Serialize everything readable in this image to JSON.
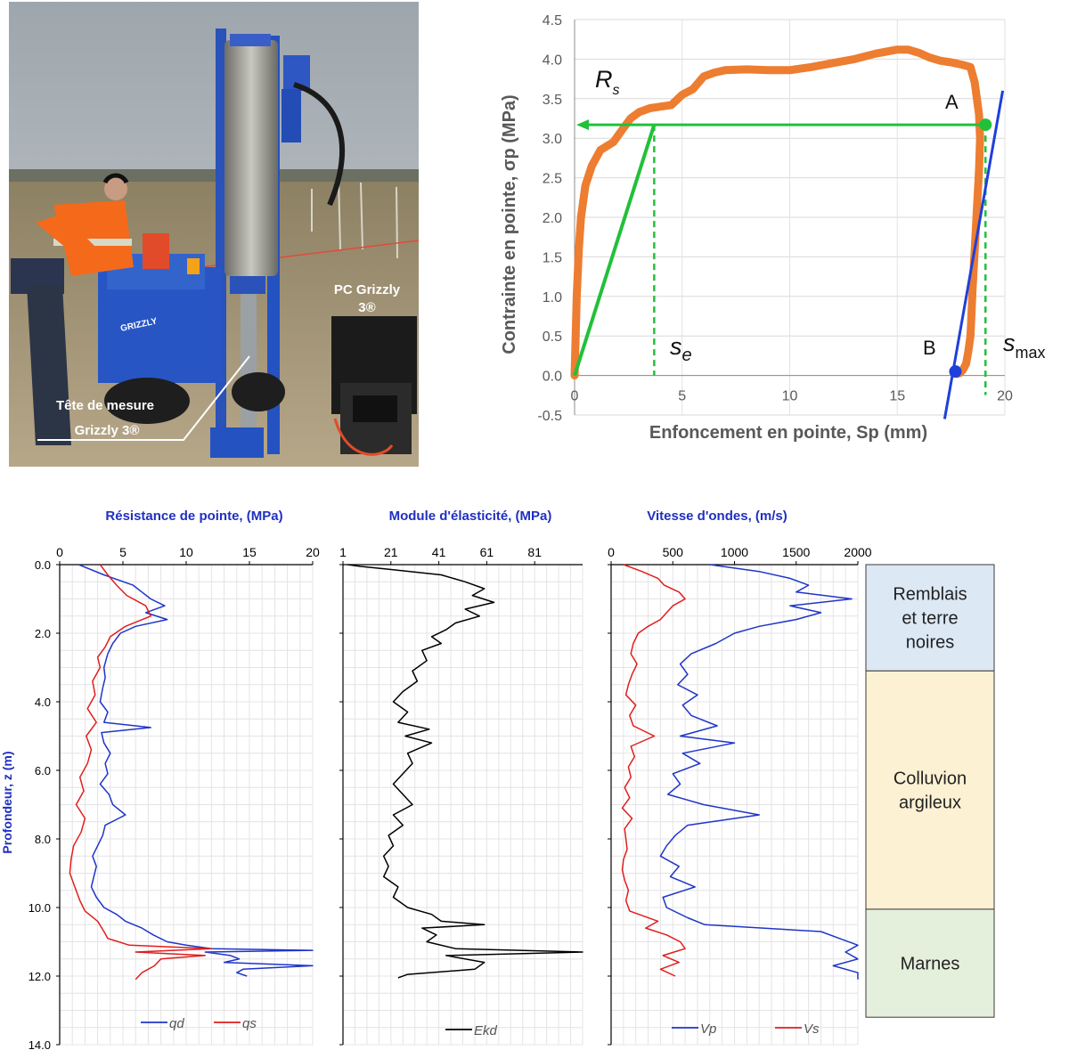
{
  "photo": {
    "label_pc_line1": "PC Grizzly",
    "label_pc_line2": "3®",
    "label_head_line1": "Tête de mesure",
    "label_head_line2": "Grizzly 3®",
    "machine_text": "GRIZZLY"
  },
  "chart_data": [
    {
      "type": "line",
      "xlabel": "Enfoncement en pointe, Sp (mm)",
      "ylabel": "Contrainte en pointe, σp (MPa)",
      "xlim": [
        0,
        20
      ],
      "ylim": [
        -0.5,
        4.5
      ],
      "xticks": [
        0,
        5,
        10,
        15,
        20
      ],
      "yticks": [
        "-0.5",
        "0.0",
        "0.5",
        "1.0",
        "1.5",
        "2.0",
        "2.5",
        "3.0",
        "3.5",
        "4.0",
        "4.5"
      ],
      "grid": true,
      "annotations": {
        "rs_main": "R",
        "rs_sub": "s",
        "se_main": "s",
        "se_sub": "e",
        "smax_main": "s",
        "smax_sub": "max",
        "pointA": "A",
        "pointB": "B"
      },
      "colors": {
        "curve": "#ed7d31",
        "construction": "#22c03a",
        "unload": "#1f3fdc"
      },
      "series": [
        {
          "x": [
            0,
            0.05,
            0.1,
            0.2,
            0.3,
            0.5,
            0.8,
            1.2,
            1.8,
            2.2,
            2.6,
            3.0,
            3.5,
            4.0,
            4.5,
            5.0,
            5.5,
            6.0,
            6.5,
            7.0,
            8.0,
            9.0,
            10.0,
            11.0,
            12.0,
            13.0,
            14.0,
            15.0,
            15.5,
            16.0,
            16.5,
            17.0,
            17.5,
            18.0,
            18.4,
            18.6,
            18.8,
            18.85,
            18.8,
            18.7,
            18.6,
            18.5,
            18.45,
            18.4,
            18.3,
            18.2,
            18.05,
            17.9,
            17.8
          ],
          "y": [
            0,
            0.5,
            1.0,
            1.6,
            2.0,
            2.4,
            2.65,
            2.85,
            2.95,
            3.1,
            3.25,
            3.33,
            3.38,
            3.4,
            3.42,
            3.55,
            3.62,
            3.78,
            3.83,
            3.86,
            3.87,
            3.86,
            3.86,
            3.9,
            3.95,
            4.0,
            4.07,
            4.12,
            4.12,
            4.08,
            4.02,
            3.98,
            3.96,
            3.93,
            3.9,
            3.7,
            3.3,
            3.0,
            2.6,
            2.1,
            1.6,
            1.1,
            0.8,
            0.5,
            0.3,
            0.15,
            0.07,
            0.03,
            0.02
          ]
        }
      ],
      "construction": {
        "yield_stress": 3.17,
        "se": 3.7,
        "smax": 19.1,
        "point_A": [
          19.1,
          3.17
        ],
        "point_B": [
          17.7,
          0.05
        ],
        "unload_line": [
          [
            17.2,
            -0.55
          ],
          [
            19.9,
            3.6
          ]
        ]
      }
    },
    {
      "type": "line",
      "title": "Résistance de pointe, (MPa)",
      "ylabel": "Profondeur, z (m)",
      "xlim": [
        0,
        20
      ],
      "ylim": [
        0,
        14
      ],
      "xticks": [
        0,
        5,
        10,
        15,
        20
      ],
      "yticks": [
        "0.0",
        "2.0",
        "4.0",
        "6.0",
        "8.0",
        "10.0",
        "12.0",
        "14.0"
      ],
      "grid": true,
      "legend": "bottom",
      "series": [
        {
          "name": "qd",
          "color": "#1f35c8",
          "depth": [
            0.0,
            0.3,
            0.6,
            0.8,
            1.0,
            1.2,
            1.4,
            1.6,
            1.8,
            2.0,
            2.3,
            2.6,
            3.0,
            3.3,
            3.6,
            4.0,
            4.3,
            4.6,
            4.75,
            4.9,
            5.2,
            5.5,
            5.8,
            6.1,
            6.4,
            6.7,
            7.0,
            7.3,
            7.6,
            7.9,
            8.2,
            8.5,
            8.8,
            9.1,
            9.4,
            9.7,
            10.0,
            10.2,
            10.4,
            10.6,
            10.8,
            11.0,
            11.1,
            11.2,
            11.25,
            11.3,
            11.4,
            11.5,
            11.6,
            11.7,
            11.8,
            11.9,
            12.0
          ],
          "values": [
            1.5,
            3.5,
            5.8,
            6.5,
            7.2,
            8.3,
            6.8,
            8.5,
            6.0,
            4.8,
            4.2,
            3.8,
            3.5,
            3.6,
            3.4,
            3.2,
            3.8,
            3.5,
            7.2,
            3.3,
            3.5,
            4.0,
            3.6,
            3.8,
            3.2,
            3.9,
            4.2,
            5.2,
            3.6,
            3.4,
            3.0,
            2.6,
            2.9,
            2.7,
            2.5,
            2.9,
            3.5,
            4.5,
            5.2,
            6.5,
            7.4,
            8.5,
            10.0,
            12.0,
            20.0,
            11.5,
            13.5,
            14.2,
            13.0,
            20.0,
            14.5,
            14.0,
            14.8
          ]
        },
        {
          "name": "qs",
          "color": "#e11d1d",
          "depth": [
            0.0,
            0.3,
            0.6,
            0.9,
            1.2,
            1.5,
            1.8,
            2.1,
            2.4,
            2.7,
            3.0,
            3.4,
            3.8,
            4.2,
            4.6,
            5.0,
            5.4,
            5.8,
            6.2,
            6.6,
            7.0,
            7.4,
            7.8,
            8.2,
            8.6,
            9.0,
            9.4,
            9.8,
            10.1,
            10.4,
            10.7,
            10.9,
            11.1,
            11.2,
            11.3,
            11.4,
            11.5,
            11.7,
            11.9,
            12.1
          ],
          "values": [
            3.2,
            3.8,
            4.5,
            5.3,
            6.8,
            7.2,
            5.2,
            4.0,
            3.6,
            3.0,
            3.2,
            2.6,
            2.8,
            2.2,
            2.9,
            2.1,
            2.5,
            2.2,
            1.6,
            1.9,
            1.3,
            2.0,
            1.7,
            1.1,
            0.9,
            0.8,
            1.2,
            1.6,
            2.0,
            3.0,
            3.5,
            3.8,
            5.5,
            12.0,
            6.0,
            11.5,
            8.0,
            7.5,
            6.5,
            6.0
          ]
        }
      ]
    },
    {
      "type": "line",
      "title": "Module d'élasticité, (MPa)",
      "xlim": [
        1,
        101
      ],
      "ylim": [
        0,
        14
      ],
      "xticks": [
        1,
        21,
        41,
        61,
        81
      ],
      "grid": true,
      "legend": "bottom",
      "series": [
        {
          "name": "Ekd",
          "color": "#000000",
          "depth": [
            0.0,
            0.05,
            0.15,
            0.3,
            0.5,
            0.7,
            0.9,
            1.1,
            1.3,
            1.5,
            1.7,
            1.9,
            2.1,
            2.3,
            2.5,
            2.8,
            3.1,
            3.4,
            3.7,
            4.0,
            4.3,
            4.6,
            4.8,
            5.0,
            5.2,
            5.5,
            5.8,
            6.1,
            6.4,
            6.7,
            7.0,
            7.3,
            7.6,
            7.9,
            8.2,
            8.5,
            8.8,
            9.1,
            9.4,
            9.7,
            10.0,
            10.2,
            10.4,
            10.5,
            10.6,
            10.8,
            11.0,
            11.2,
            11.3,
            11.4,
            11.6,
            11.8,
            11.95,
            12.05
          ],
          "values": [
            3,
            8,
            22,
            42,
            52,
            60,
            55,
            64,
            52,
            58,
            48,
            44,
            38,
            42,
            34,
            36,
            30,
            32,
            26,
            22,
            28,
            24,
            37,
            27,
            38,
            28,
            30,
            26,
            22,
            26,
            30,
            22,
            26,
            20,
            22,
            18,
            20,
            18,
            24,
            22,
            28,
            38,
            42,
            60,
            34,
            40,
            36,
            48,
            110,
            44,
            60,
            56,
            28,
            24
          ]
        }
      ]
    },
    {
      "type": "line",
      "title": "Vitesse d'ondes, (m/s)",
      "xlim": [
        0,
        2000
      ],
      "ylim": [
        0,
        14
      ],
      "xticks": [
        0,
        500,
        1000,
        1500,
        2000
      ],
      "grid": true,
      "legend": "bottom",
      "series": [
        {
          "name": "Vp",
          "color": "#1f35c8",
          "depth": [
            0.0,
            0.2,
            0.4,
            0.6,
            0.8,
            1.0,
            1.2,
            1.4,
            1.6,
            1.8,
            2.0,
            2.3,
            2.6,
            2.9,
            3.2,
            3.5,
            3.8,
            4.1,
            4.4,
            4.7,
            5.0,
            5.2,
            5.5,
            5.8,
            6.1,
            6.4,
            6.7,
            7.0,
            7.3,
            7.6,
            7.9,
            8.2,
            8.5,
            8.8,
            9.1,
            9.4,
            9.7,
            10.0,
            10.3,
            10.5,
            10.7,
            10.9,
            11.1,
            11.3,
            11.5,
            11.7,
            11.9,
            12.1
          ],
          "values": [
            800,
            1200,
            1450,
            1600,
            1500,
            1950,
            1450,
            1700,
            1500,
            1200,
            1000,
            850,
            650,
            560,
            620,
            540,
            700,
            580,
            650,
            860,
            560,
            1000,
            580,
            720,
            500,
            560,
            460,
            750,
            1200,
            620,
            520,
            450,
            400,
            550,
            480,
            680,
            420,
            450,
            620,
            760,
            1700,
            1850,
            2000,
            1900,
            2000,
            1800,
            2000,
            2000
          ]
        },
        {
          "name": "Vs",
          "color": "#e11d1d",
          "depth": [
            0.0,
            0.2,
            0.4,
            0.6,
            0.8,
            1.0,
            1.2,
            1.4,
            1.6,
            1.8,
            2.0,
            2.3,
            2.6,
            2.9,
            3.2,
            3.5,
            3.8,
            4.1,
            4.4,
            4.7,
            5.0,
            5.3,
            5.6,
            5.9,
            6.2,
            6.5,
            6.8,
            7.1,
            7.4,
            7.7,
            8.0,
            8.3,
            8.6,
            8.9,
            9.2,
            9.5,
            9.8,
            10.1,
            10.4,
            10.6,
            10.8,
            11.0,
            11.2,
            11.4,
            11.6,
            11.8,
            12.0
          ],
          "values": [
            100,
            250,
            380,
            430,
            550,
            600,
            500,
            450,
            400,
            300,
            220,
            180,
            160,
            210,
            170,
            140,
            120,
            200,
            150,
            180,
            350,
            160,
            190,
            140,
            160,
            110,
            150,
            90,
            170,
            110,
            120,
            130,
            100,
            90,
            110,
            140,
            120,
            150,
            380,
            280,
            450,
            560,
            600,
            420,
            550,
            400,
            520
          ]
        }
      ]
    }
  ],
  "strata": [
    {
      "label": "Remblais et terre noires",
      "lines": [
        "Remblais",
        "et terre",
        "noires"
      ],
      "top": 0.0,
      "bottom": 3.1,
      "color": "#dce8f4"
    },
    {
      "label": "Colluvion argileux",
      "lines": [
        "Colluvion",
        "argileux"
      ],
      "top": 3.1,
      "bottom": 10.05,
      "color": "#fdf1d3"
    },
    {
      "label": "Marnes",
      "lines": [
        "Marnes"
      ],
      "top": 10.05,
      "bottom": 13.2,
      "color": "#e4efdc"
    }
  ]
}
